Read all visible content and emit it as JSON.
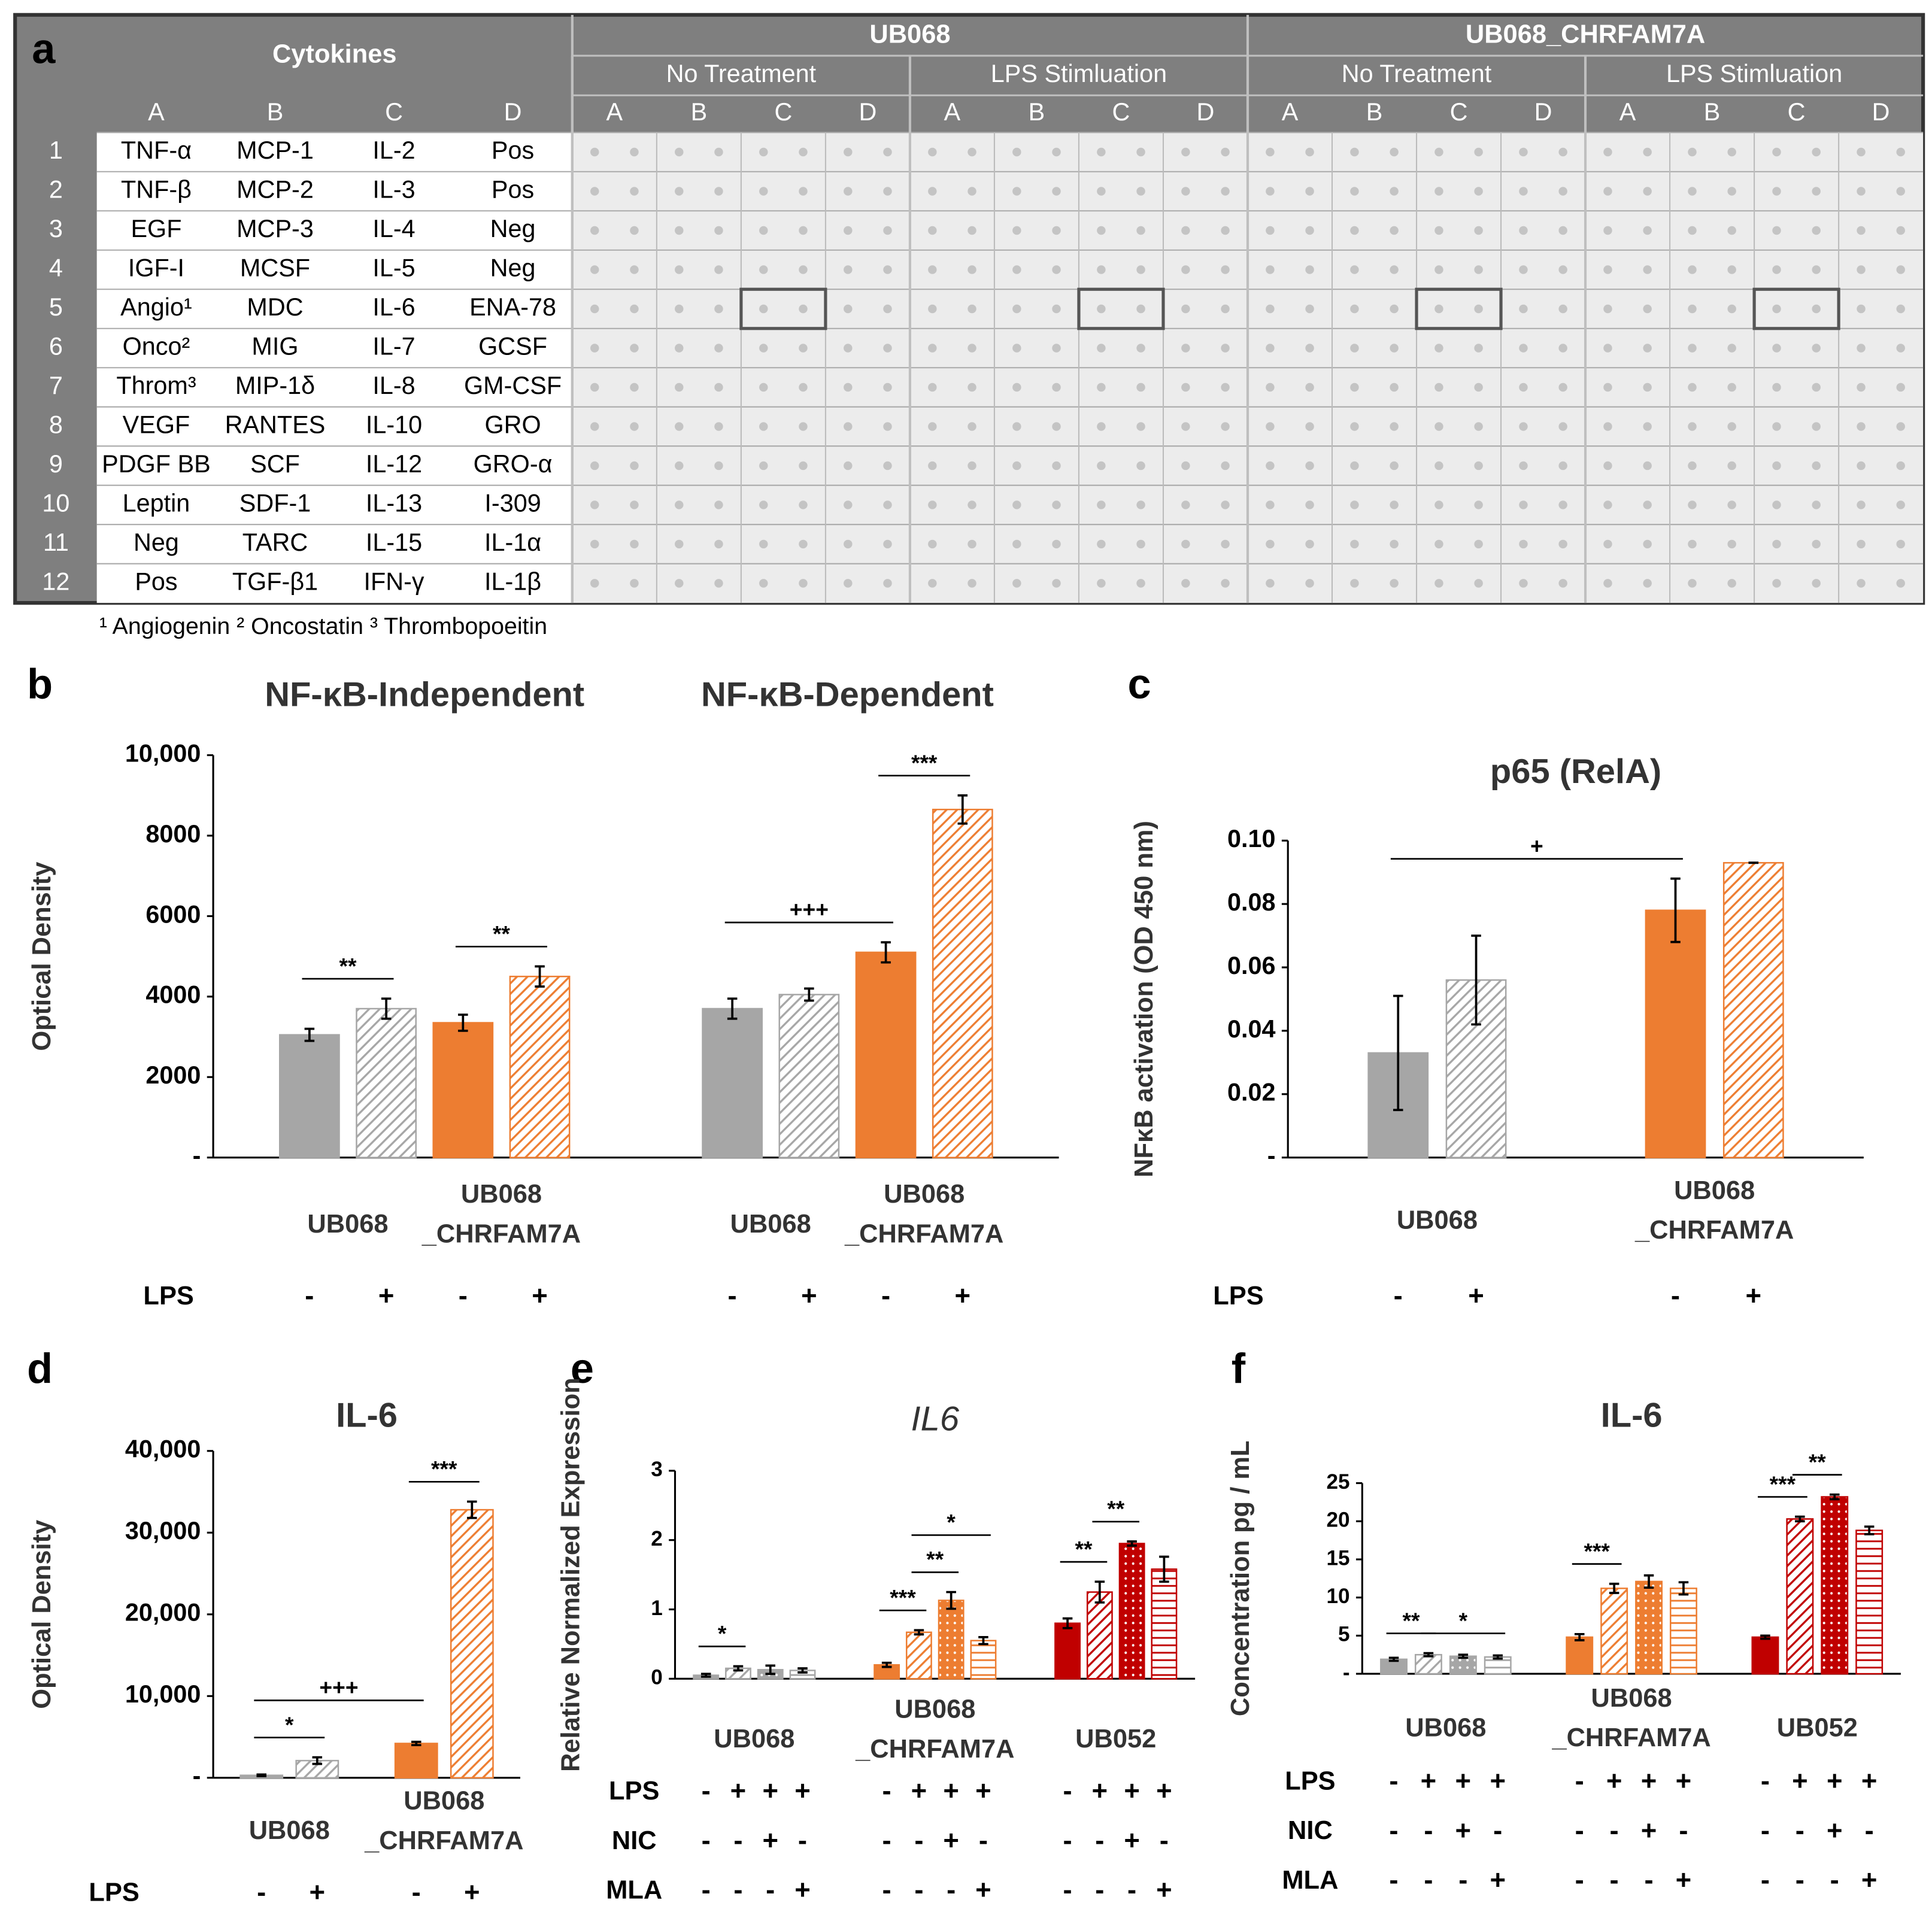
{
  "array": {
    "label": "a",
    "title": "Cytokines",
    "columns": [
      "A",
      "B",
      "C",
      "D"
    ],
    "rows": [
      "1",
      "2",
      "3",
      "4",
      "5",
      "6",
      "7",
      "8",
      "9",
      "10",
      "11",
      "12"
    ],
    "cells": [
      [
        "TNF-α",
        "MCP-1",
        "IL-2",
        "Pos"
      ],
      [
        "TNF-β",
        "MCP-2",
        "IL-3",
        "Pos"
      ],
      [
        "EGF",
        "MCP-3",
        "IL-4",
        "Neg"
      ],
      [
        "IGF-I",
        "MCSF",
        "IL-5",
        "Neg"
      ],
      [
        "Angio¹",
        "MDC",
        "IL-6",
        "ENA-78"
      ],
      [
        "Onco²",
        "MIG",
        "IL-7",
        "GCSF"
      ],
      [
        "Throm³",
        "MIP-1δ",
        "IL-8",
        "GM-CSF"
      ],
      [
        "VEGF",
        "RANTES",
        "IL-10",
        "GRO"
      ],
      [
        "PDGF BB",
        "SCF",
        "IL-12",
        "GRO-α"
      ],
      [
        "Leptin",
        "SDF-1",
        "IL-13",
        "I-309"
      ],
      [
        "Neg",
        "TARC",
        "IL-15",
        "IL-1α"
      ],
      [
        "Pos",
        "TGF-β1",
        "IFN-γ",
        "IL-1β"
      ]
    ],
    "groups": [
      {
        "name": "UB068",
        "conditions": [
          "No Treatment",
          "LPS Stimluation"
        ]
      },
      {
        "name": "UB068_CHRFAM7A",
        "conditions": [
          "No Treatment",
          "LPS Stimluation"
        ]
      }
    ],
    "footnote": "¹ Angiogenin  ² Oncostatin  ³ Thrombopoeitin"
  },
  "chart_data": [
    {
      "type": "bar",
      "panel": "b",
      "ylabel": "Optical Density",
      "ylim": [
        0,
        10000
      ],
      "yticks": [
        {
          "value": 0,
          "label": "-"
        },
        2000,
        4000,
        6000,
        8000,
        {
          "value": 10000,
          "label": "10,000"
        }
      ],
      "bar_styles": [
        {
          "color": "#a6a6a6",
          "fill": "solid"
        },
        {
          "color": "#a6a6a6",
          "fill": "hatch"
        },
        {
          "color": "#ed7d31",
          "fill": "solid"
        },
        {
          "color": "#ed7d31",
          "fill": "hatch"
        }
      ],
      "groups": [
        [
          "UB068"
        ],
        [
          "UB068",
          "_CHRFAM7A"
        ]
      ],
      "rows": [
        {
          "name": "LPS",
          "labels": [
            "-",
            "+"
          ]
        }
      ],
      "facets": [
        {
          "title": "NF-κB-Independent",
          "values": [
            3050,
            3700,
            3350,
            4500
          ],
          "errors": [
            150,
            250,
            200,
            250
          ],
          "annotations": [
            {
              "text": "**",
              "bars": [
                0,
                1
              ]
            },
            {
              "text": "**",
              "bars": [
                2,
                3
              ]
            }
          ]
        },
        {
          "title": "NF-κB-Dependent",
          "values": [
            3700,
            4050,
            5100,
            8650
          ],
          "errors": [
            250,
            150,
            250,
            350
          ],
          "annotations": [
            {
              "text": "+++",
              "bars": [
                0,
                2
              ]
            },
            {
              "text": "***",
              "bars": [
                2,
                3
              ]
            }
          ]
        }
      ]
    },
    {
      "type": "bar",
      "panel": "c",
      "ylabel": "NFκB activation (OD 450 nm)",
      "ylim": [
        0,
        0.1
      ],
      "yticks": [
        {
          "value": 0,
          "label": "-"
        },
        0.02,
        0.04,
        0.06,
        0.08,
        {
          "value": 0.1,
          "label": "0.10"
        }
      ],
      "bar_styles": [
        {
          "color": "#a6a6a6",
          "fill": "solid"
        },
        {
          "color": "#a6a6a6",
          "fill": "hatch"
        },
        {
          "color": "#ed7d31",
          "fill": "solid"
        },
        {
          "color": "#ed7d31",
          "fill": "hatch"
        }
      ],
      "groups": [
        [
          "UB068"
        ],
        [
          "UB068",
          "_CHRFAM7A"
        ]
      ],
      "rows": [
        {
          "name": "LPS",
          "labels": [
            "-",
            "+"
          ]
        }
      ],
      "facets": [
        {
          "title": "p65 (RelA)",
          "values": [
            0.033,
            0.056,
            0.078,
            0.093
          ],
          "errors": [
            0.018,
            0.014,
            0.01,
            0
          ],
          "annotations": [
            {
              "text": "+",
              "bars": [
                0,
                2
              ]
            }
          ]
        }
      ]
    },
    {
      "type": "bar",
      "panel": "d",
      "ylabel": "Optical Density",
      "ylim": [
        0,
        40000
      ],
      "yticks": [
        {
          "value": 0,
          "label": "-"
        },
        {
          "value": 10000,
          "label": "10,000"
        },
        {
          "value": 20000,
          "label": "20,000"
        },
        {
          "value": 30000,
          "label": "30,000"
        },
        {
          "value": 40000,
          "label": "40,000"
        }
      ],
      "bar_styles": [
        {
          "color": "#a6a6a6",
          "fill": "solid"
        },
        {
          "color": "#a6a6a6",
          "fill": "hatch"
        },
        {
          "color": "#ed7d31",
          "fill": "solid"
        },
        {
          "color": "#ed7d31",
          "fill": "hatch"
        }
      ],
      "groups": [
        [
          "UB068"
        ],
        [
          "UB068",
          "_CHRFAM7A"
        ]
      ],
      "rows": [
        {
          "name": "LPS",
          "labels": [
            "-",
            "+"
          ]
        }
      ],
      "facets": [
        {
          "title": "IL-6",
          "values": [
            300,
            2100,
            4200,
            32800
          ],
          "errors": [
            100,
            400,
            200,
            1000
          ],
          "annotations": [
            {
              "text": "*",
              "bars": [
                0,
                1
              ]
            },
            {
              "text": "***",
              "bars": [
                2,
                3
              ]
            },
            {
              "text": "+++",
              "bars": [
                0,
                2
              ]
            }
          ]
        }
      ]
    },
    {
      "type": "bar",
      "panel": "e",
      "ylabel": "Relative Normalized Expression",
      "title_style": "italic",
      "ylim": [
        0,
        3
      ],
      "yticks": [
        0,
        1,
        2,
        3
      ],
      "bar_styles": [
        {
          "color": "#a6a6a6",
          "fill": "solid"
        },
        {
          "color": "#a6a6a6",
          "fill": "hatch"
        },
        {
          "color": "#a6a6a6",
          "fill": "dots"
        },
        {
          "color": "#a6a6a6",
          "fill": "hlines"
        },
        {
          "color": "#ed7d31",
          "fill": "solid"
        },
        {
          "color": "#ed7d31",
          "fill": "hatch"
        },
        {
          "color": "#ed7d31",
          "fill": "dots"
        },
        {
          "color": "#ed7d31",
          "fill": "hlines"
        },
        {
          "color": "#c00000",
          "fill": "solid"
        },
        {
          "color": "#c00000",
          "fill": "hatch"
        },
        {
          "color": "#c00000",
          "fill": "dots"
        },
        {
          "color": "#c00000",
          "fill": "hlines"
        }
      ],
      "groups": [
        [
          "UB068"
        ],
        [
          "UB068",
          "_CHRFAM7A"
        ],
        [
          "UB052"
        ]
      ],
      "rows": [
        {
          "name": "LPS",
          "labels": [
            "-",
            "+",
            "+",
            "+"
          ]
        },
        {
          "name": "NIC",
          "labels": [
            "-",
            "-",
            "+",
            "-"
          ]
        },
        {
          "name": "MLA",
          "labels": [
            "-",
            "-",
            "-",
            "+"
          ]
        }
      ],
      "facets": [
        {
          "title": "IL6",
          "values": [
            0.05,
            0.15,
            0.13,
            0.12,
            0.2,
            0.67,
            1.13,
            0.55,
            0.8,
            1.25,
            1.95,
            1.58
          ],
          "errors": [
            0.02,
            0.03,
            0.06,
            0.03,
            0.03,
            0.03,
            0.12,
            0.05,
            0.07,
            0.15,
            0.03,
            0.18
          ],
          "annotations": [
            {
              "text": "*",
              "bars": [
                0,
                1
              ]
            },
            {
              "text": "***",
              "bars": [
                4,
                5
              ]
            },
            {
              "text": "**",
              "bars": [
                5,
                6
              ]
            },
            {
              "text": "*",
              "bars": [
                5,
                7
              ]
            },
            {
              "text": "**",
              "bars": [
                8,
                9
              ]
            },
            {
              "text": "**",
              "bars": [
                9,
                10
              ]
            }
          ]
        }
      ]
    },
    {
      "type": "bar",
      "panel": "f",
      "ylabel": "Concentration pg / mL",
      "ylim": [
        0,
        25
      ],
      "yticks": [
        {
          "value": 0,
          "label": "-"
        },
        5,
        10,
        15,
        20,
        25
      ],
      "bar_styles": [
        {
          "color": "#a6a6a6",
          "fill": "solid"
        },
        {
          "color": "#a6a6a6",
          "fill": "hatch"
        },
        {
          "color": "#a6a6a6",
          "fill": "dots"
        },
        {
          "color": "#a6a6a6",
          "fill": "hlines"
        },
        {
          "color": "#ed7d31",
          "fill": "solid"
        },
        {
          "color": "#ed7d31",
          "fill": "hatch"
        },
        {
          "color": "#ed7d31",
          "fill": "dots"
        },
        {
          "color": "#ed7d31",
          "fill": "hlines"
        },
        {
          "color": "#c00000",
          "fill": "solid"
        },
        {
          "color": "#c00000",
          "fill": "hatch"
        },
        {
          "color": "#c00000",
          "fill": "dots"
        },
        {
          "color": "#c00000",
          "fill": "hlines"
        }
      ],
      "groups": [
        [
          "UB068"
        ],
        [
          "UB068",
          "_CHRFAM7A"
        ],
        [
          "UB052"
        ]
      ],
      "rows": [
        {
          "name": "LPS",
          "labels": [
            "-",
            "+",
            "+",
            "+"
          ]
        },
        {
          "name": "NIC",
          "labels": [
            "-",
            "-",
            "+",
            "-"
          ]
        },
        {
          "name": "MLA",
          "labels": [
            "-",
            "-",
            "-",
            "+"
          ]
        }
      ],
      "facets": [
        {
          "title": "IL-6",
          "values": [
            1.9,
            2.5,
            2.3,
            2.2,
            4.8,
            11.2,
            12.1,
            11.2,
            4.8,
            20.3,
            23.2,
            18.8
          ],
          "errors": [
            0.2,
            0.2,
            0.2,
            0.2,
            0.4,
            0.6,
            0.8,
            0.8,
            0.2,
            0.3,
            0.3,
            0.5
          ],
          "annotations": [
            {
              "text": "**",
              "bars": [
                0,
                1
              ]
            },
            {
              "text": "*",
              "bars": [
                1,
                3
              ]
            },
            {
              "text": "***",
              "bars": [
                4,
                5
              ]
            },
            {
              "text": "***",
              "bars": [
                8,
                9
              ]
            },
            {
              "text": "**",
              "bars": [
                9,
                10
              ]
            }
          ]
        }
      ]
    }
  ]
}
